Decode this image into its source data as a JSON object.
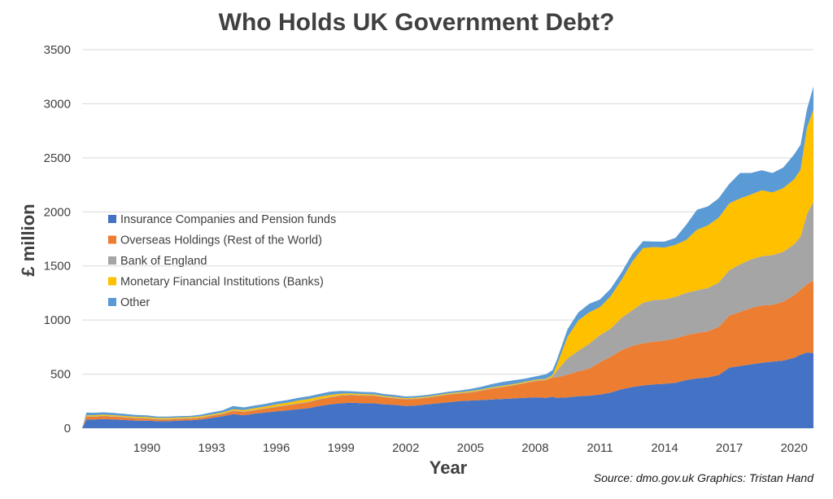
{
  "chart_data": {
    "type": "area",
    "stacked": true,
    "title": "Who Holds UK Government Debt?",
    "xlabel": "Year",
    "ylabel": "£ million",
    "source": "Source: dmo.gov.uk  Graphics: Tristan Hand",
    "ylim": [
      0,
      3500
    ],
    "xlim": [
      1987.0,
      2020.9
    ],
    "yticks": [
      0,
      500,
      1000,
      1500,
      2000,
      2500,
      3000,
      3500
    ],
    "xticks": [
      1990,
      1993,
      1996,
      1999,
      2002,
      2005,
      2008,
      2011,
      2014,
      2017,
      2020
    ],
    "grid": true,
    "legend_position": "left",
    "x": [
      1987.0,
      1987.2,
      1987.5,
      1988.0,
      1988.5,
      1989.0,
      1989.5,
      1990.0,
      1990.5,
      1991.0,
      1991.5,
      1992.0,
      1992.5,
      1993.0,
      1993.5,
      1994.0,
      1994.5,
      1995.0,
      1995.5,
      1996.0,
      1996.5,
      1997.0,
      1997.5,
      1998.0,
      1998.5,
      1999.0,
      1999.5,
      2000.0,
      2000.5,
      2001.0,
      2001.5,
      2002.0,
      2002.5,
      2003.0,
      2003.5,
      2004.0,
      2004.5,
      2005.0,
      2005.5,
      2006.0,
      2006.5,
      2007.0,
      2007.5,
      2008.0,
      2008.5,
      2008.8,
      2009.0,
      2009.5,
      2010.0,
      2010.5,
      2011.0,
      2011.5,
      2012.0,
      2012.5,
      2013.0,
      2013.5,
      2014.0,
      2014.5,
      2015.0,
      2015.5,
      2016.0,
      2016.5,
      2017.0,
      2017.5,
      2018.0,
      2018.5,
      2019.0,
      2019.5,
      2020.0,
      2020.3,
      2020.6,
      2020.9
    ],
    "series": [
      {
        "name": "Insurance Companies and Pension funds",
        "color": "#4472c4",
        "values": [
          0,
          80,
          80,
          85,
          80,
          75,
          70,
          70,
          65,
          65,
          70,
          72,
          80,
          95,
          110,
          130,
          120,
          135,
          145,
          155,
          165,
          175,
          185,
          205,
          220,
          230,
          235,
          230,
          230,
          220,
          215,
          205,
          210,
          220,
          230,
          240,
          250,
          255,
          260,
          265,
          270,
          275,
          280,
          285,
          280,
          290,
          280,
          285,
          295,
          300,
          310,
          330,
          360,
          380,
          395,
          405,
          410,
          420,
          445,
          460,
          470,
          490,
          560,
          575,
          590,
          605,
          615,
          625,
          650,
          680,
          700,
          695
        ]
      },
      {
        "name": "Overseas Holdings (Rest of the World)",
        "color": "#ed7d31",
        "values": [
          0,
          25,
          25,
          25,
          25,
          22,
          20,
          18,
          15,
          15,
          15,
          15,
          15,
          18,
          20,
          28,
          30,
          30,
          35,
          40,
          45,
          50,
          55,
          60,
          65,
          70,
          70,
          70,
          70,
          65,
          60,
          60,
          60,
          60,
          65,
          70,
          70,
          75,
          85,
          100,
          110,
          120,
          135,
          150,
          165,
          180,
          190,
          210,
          230,
          250,
          300,
          330,
          360,
          380,
          390,
          395,
          400,
          410,
          415,
          420,
          425,
          445,
          480,
          500,
          520,
          530,
          525,
          545,
          580,
          600,
          630,
          670
        ]
      },
      {
        "name": "Bank of England",
        "color": "#a5a5a5",
        "values": [
          0,
          5,
          5,
          5,
          5,
          5,
          5,
          5,
          5,
          5,
          5,
          5,
          5,
          5,
          5,
          5,
          5,
          5,
          5,
          5,
          5,
          5,
          5,
          5,
          5,
          5,
          5,
          5,
          5,
          5,
          5,
          5,
          5,
          5,
          5,
          5,
          5,
          5,
          5,
          5,
          5,
          5,
          5,
          5,
          5,
          5,
          60,
          150,
          190,
          230,
          250,
          260,
          300,
          330,
          375,
          385,
          380,
          385,
          390,
          395,
          400,
          410,
          420,
          440,
          450,
          455,
          460,
          460,
          470,
          490,
          650,
          730
        ]
      },
      {
        "name": "Monetary Financial Institutions (Banks)",
        "color": "#ffc000",
        "values": [
          0,
          10,
          10,
          10,
          10,
          10,
          10,
          10,
          10,
          10,
          10,
          10,
          10,
          10,
          10,
          12,
          12,
          15,
          15,
          20,
          20,
          25,
          25,
          22,
          18,
          15,
          12,
          10,
          8,
          8,
          8,
          8,
          8,
          8,
          8,
          8,
          8,
          8,
          8,
          8,
          8,
          8,
          8,
          8,
          8,
          15,
          50,
          200,
          280,
          290,
          260,
          300,
          350,
          450,
          505,
          490,
          480,
          480,
          490,
          560,
          580,
          600,
          620,
          610,
          600,
          610,
          580,
          590,
          600,
          620,
          800,
          850
        ]
      },
      {
        "name": "Other",
        "color": "#5b9bd5",
        "values": [
          0,
          25,
          22,
          22,
          20,
          20,
          18,
          15,
          12,
          12,
          12,
          12,
          15,
          18,
          20,
          30,
          25,
          25,
          25,
          25,
          25,
          25,
          25,
          25,
          30,
          25,
          20,
          20,
          20,
          18,
          18,
          15,
          15,
          15,
          15,
          15,
          15,
          20,
          25,
          30,
          35,
          35,
          30,
          30,
          40,
          45,
          50,
          70,
          75,
          80,
          70,
          70,
          70,
          70,
          65,
          50,
          55,
          65,
          140,
          185,
          175,
          180,
          180,
          235,
          200,
          185,
          180,
          190,
          230,
          230,
          170,
          215
        ]
      }
    ]
  }
}
